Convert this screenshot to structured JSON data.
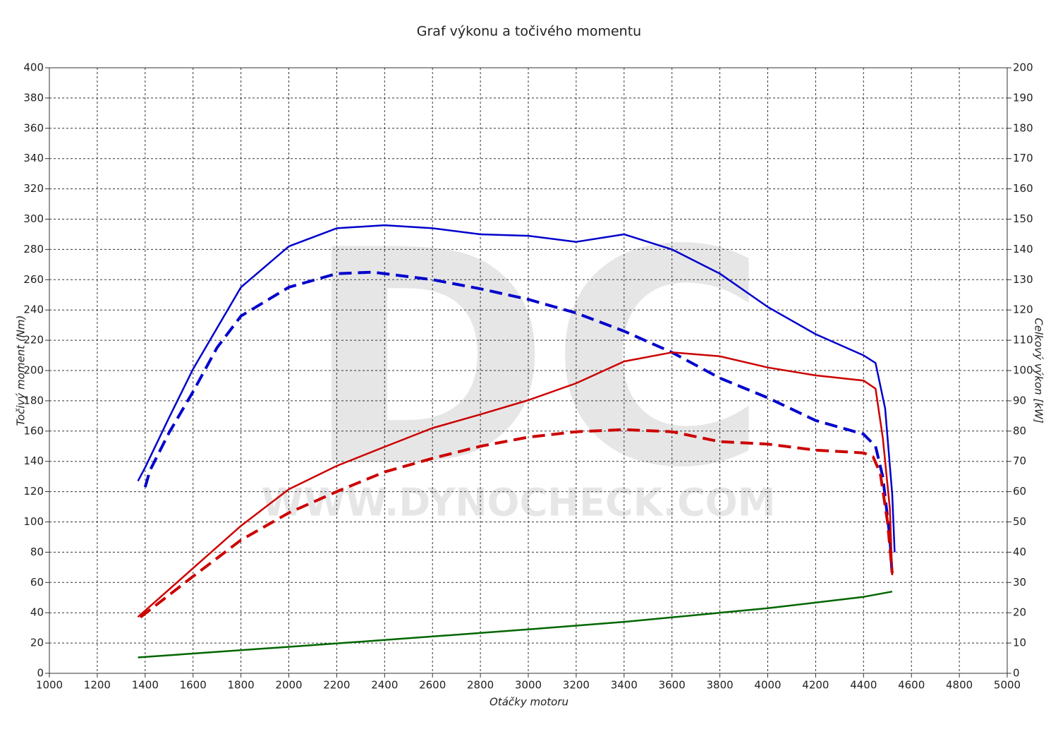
{
  "chart_data": {
    "type": "line",
    "title": "Graf výkonu a točivého momentu",
    "x_label": "Otáčky motoru",
    "y_label": "Točivý moment (Nm)",
    "y2_label": "Celkový výkon [kW]",
    "watermark": "DC",
    "watermark_url": "WWW.DYNOCHECK.COM",
    "xlim": [
      1000,
      5000
    ],
    "xticks": [
      1000,
      1200,
      1400,
      1600,
      1800,
      2000,
      2200,
      2400,
      2600,
      2800,
      3000,
      3200,
      3400,
      3600,
      3800,
      4000,
      4200,
      4400,
      4600,
      4800,
      5000
    ],
    "ylim": [
      0,
      400
    ],
    "yticks": [
      0,
      20,
      40,
      60,
      80,
      100,
      120,
      140,
      160,
      180,
      200,
      220,
      240,
      260,
      280,
      300,
      320,
      340,
      360,
      380,
      400
    ],
    "y2lim": [
      0,
      200
    ],
    "y2ticks": [
      0,
      10,
      20,
      30,
      40,
      50,
      60,
      70,
      80,
      90,
      100,
      110,
      120,
      130,
      140,
      150,
      160,
      170,
      180,
      190,
      200
    ],
    "grid": true,
    "series": [
      {
        "color": "#0000cc",
        "dashed": false,
        "x": [
          1370,
          1400,
          1500,
          1600,
          1800,
          2000,
          2200,
          2400,
          2600,
          2800,
          3000,
          3200,
          3400,
          3600,
          3800,
          4000,
          4200,
          4400,
          4450,
          4490,
          4520,
          4530
        ],
        "values": [
          127,
          136,
          169,
          201,
          255,
          282,
          294,
          296,
          294,
          290,
          289,
          285,
          290,
          280,
          264,
          242,
          224,
          210,
          205,
          175,
          118,
          80
        ]
      },
      {
        "color": "#0000cc",
        "dashed": true,
        "x": [
          1400,
          1420,
          1500,
          1600,
          1700,
          1800,
          2000,
          2200,
          2350,
          2600,
          2800,
          3000,
          3200,
          3400,
          3600,
          3800,
          4000,
          4200,
          4400,
          4450,
          4480,
          4510,
          4520
        ],
        "values": [
          123,
          134,
          159,
          186,
          215,
          236,
          255,
          264,
          265,
          260,
          254,
          247,
          238,
          226,
          212,
          195,
          182,
          167,
          158,
          150,
          130,
          90,
          64
        ]
      },
      {
        "color": "#cc0000",
        "dashed": false,
        "axis": "y2",
        "x": [
          1370,
          1600,
          1800,
          2000,
          2200,
          2400,
          2600,
          2800,
          3000,
          3200,
          3400,
          3600,
          3800,
          4000,
          4200,
          4400,
          4450,
          4480,
          4510,
          4520
        ],
        "values": [
          18.6,
          34.7,
          48.7,
          60.8,
          68.5,
          74.8,
          81,
          85.5,
          90.2,
          95.8,
          103,
          106,
          104.7,
          101,
          98.4,
          96.7,
          94,
          78,
          54.5,
          32.4
        ]
      },
      {
        "color": "#cc0000",
        "dashed": true,
        "axis": "y2",
        "x": [
          1380,
          1600,
          1800,
          2000,
          2200,
          2400,
          2600,
          2800,
          3000,
          3200,
          3400,
          3600,
          3800,
          4000,
          4200,
          4400,
          4440,
          4470,
          4500,
          4520
        ],
        "values": [
          18.5,
          32,
          44,
          53,
          60,
          66.5,
          71,
          75,
          78,
          79.8,
          80.5,
          79.8,
          76.5,
          75.7,
          73.7,
          72.8,
          71.5,
          66,
          50,
          33
        ]
      },
      {
        "color": "#006600",
        "dashed": false,
        "x": [
          1370,
          2000,
          2400,
          3000,
          3400,
          4000,
          4400,
          4520
        ],
        "values": [
          10.5,
          17.5,
          22,
          29,
          34,
          43,
          50.5,
          54
        ]
      }
    ]
  }
}
